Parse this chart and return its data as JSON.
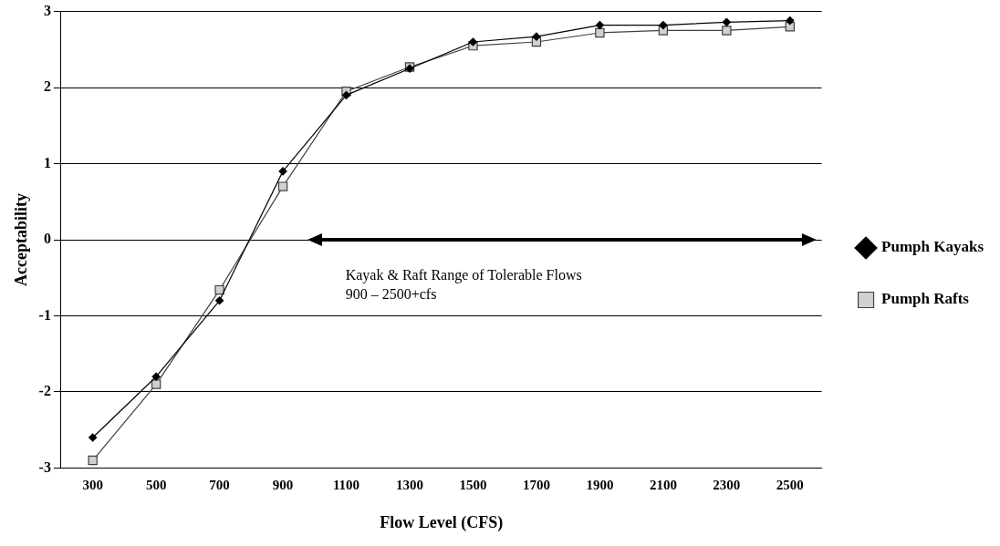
{
  "chart_data": {
    "type": "line",
    "xlabel": "Flow Level (CFS)",
    "ylabel": "Acceptability",
    "categories": [
      "300",
      "500",
      "700",
      "900",
      "1100",
      "1300",
      "1500",
      "1700",
      "1900",
      "2100",
      "2300",
      "2500"
    ],
    "series": [
      {
        "name": "Pumph Kayaks",
        "color": "#000000",
        "marker": "diamond",
        "values": [
          -2.6,
          -1.8,
          -0.8,
          0.9,
          1.9,
          2.25,
          2.6,
          2.67,
          2.82,
          2.82,
          2.86,
          2.88
        ]
      },
      {
        "name": "Pumph Rafts",
        "color": "#404040",
        "marker": "square",
        "values": [
          -2.9,
          -1.9,
          -0.66,
          0.7,
          1.95,
          2.27,
          2.55,
          2.6,
          2.72,
          2.75,
          2.75,
          2.8
        ]
      }
    ],
    "ylim": [
      -3,
      3
    ],
    "yticks": [
      -3,
      -2,
      -1,
      0,
      1,
      2,
      3
    ],
    "grid": "y",
    "legend": "right",
    "annotations": [
      "Kayak & Raft Range of Tolerable Flows\n900 – 2500+cfs"
    ]
  }
}
